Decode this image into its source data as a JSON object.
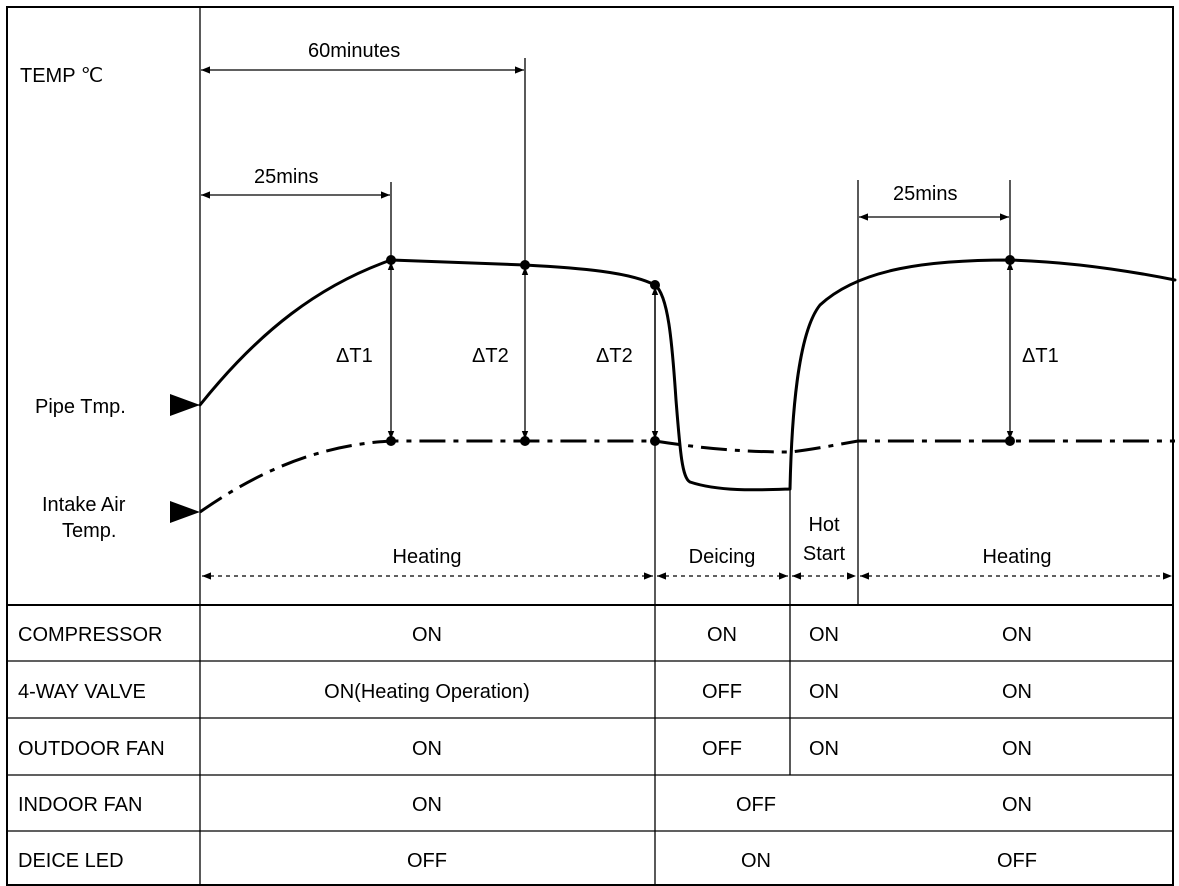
{
  "axis": {
    "temp_label": "TEMP ℃",
    "pipe_temp_label": "Pipe Tmp.",
    "intake_air_label_1": "Intake Air",
    "intake_air_label_2": "Temp."
  },
  "intervals": {
    "sixty": "60minutes",
    "twenty_five_first": "25mins",
    "twenty_five_second": "25mins"
  },
  "deltas": {
    "dt1_first": "ΔT1",
    "dt2_first": "ΔT2",
    "dt2_second": "ΔT2",
    "dt1_second": "ΔT1"
  },
  "phases": {
    "heating_1": "Heating",
    "deicing": "Deicing",
    "hot_start_1": "Hot",
    "hot_start_2": "Start",
    "heating_2": "Heating"
  },
  "table": {
    "rows": [
      {
        "label": "COMPRESSOR",
        "heating": "ON",
        "deicing": "ON",
        "hot_start": "ON",
        "heating_after": "ON"
      },
      {
        "label": "4-WAY VALVE",
        "heating": "ON(Heating Operation)",
        "deicing": "OFF",
        "hot_start": "ON",
        "heating_after": "ON"
      },
      {
        "label": "OUTDOOR FAN",
        "heating": "ON",
        "deicing": "OFF",
        "hot_start": "ON",
        "heating_after": "ON"
      },
      {
        "label": "INDOOR FAN",
        "heating": "ON",
        "deicing_hot_start": "OFF",
        "heating_after": "ON"
      },
      {
        "label": "DEICE LED",
        "heating": "OFF",
        "deicing_hot_start": "ON",
        "heating_after": "OFF"
      }
    ]
  }
}
